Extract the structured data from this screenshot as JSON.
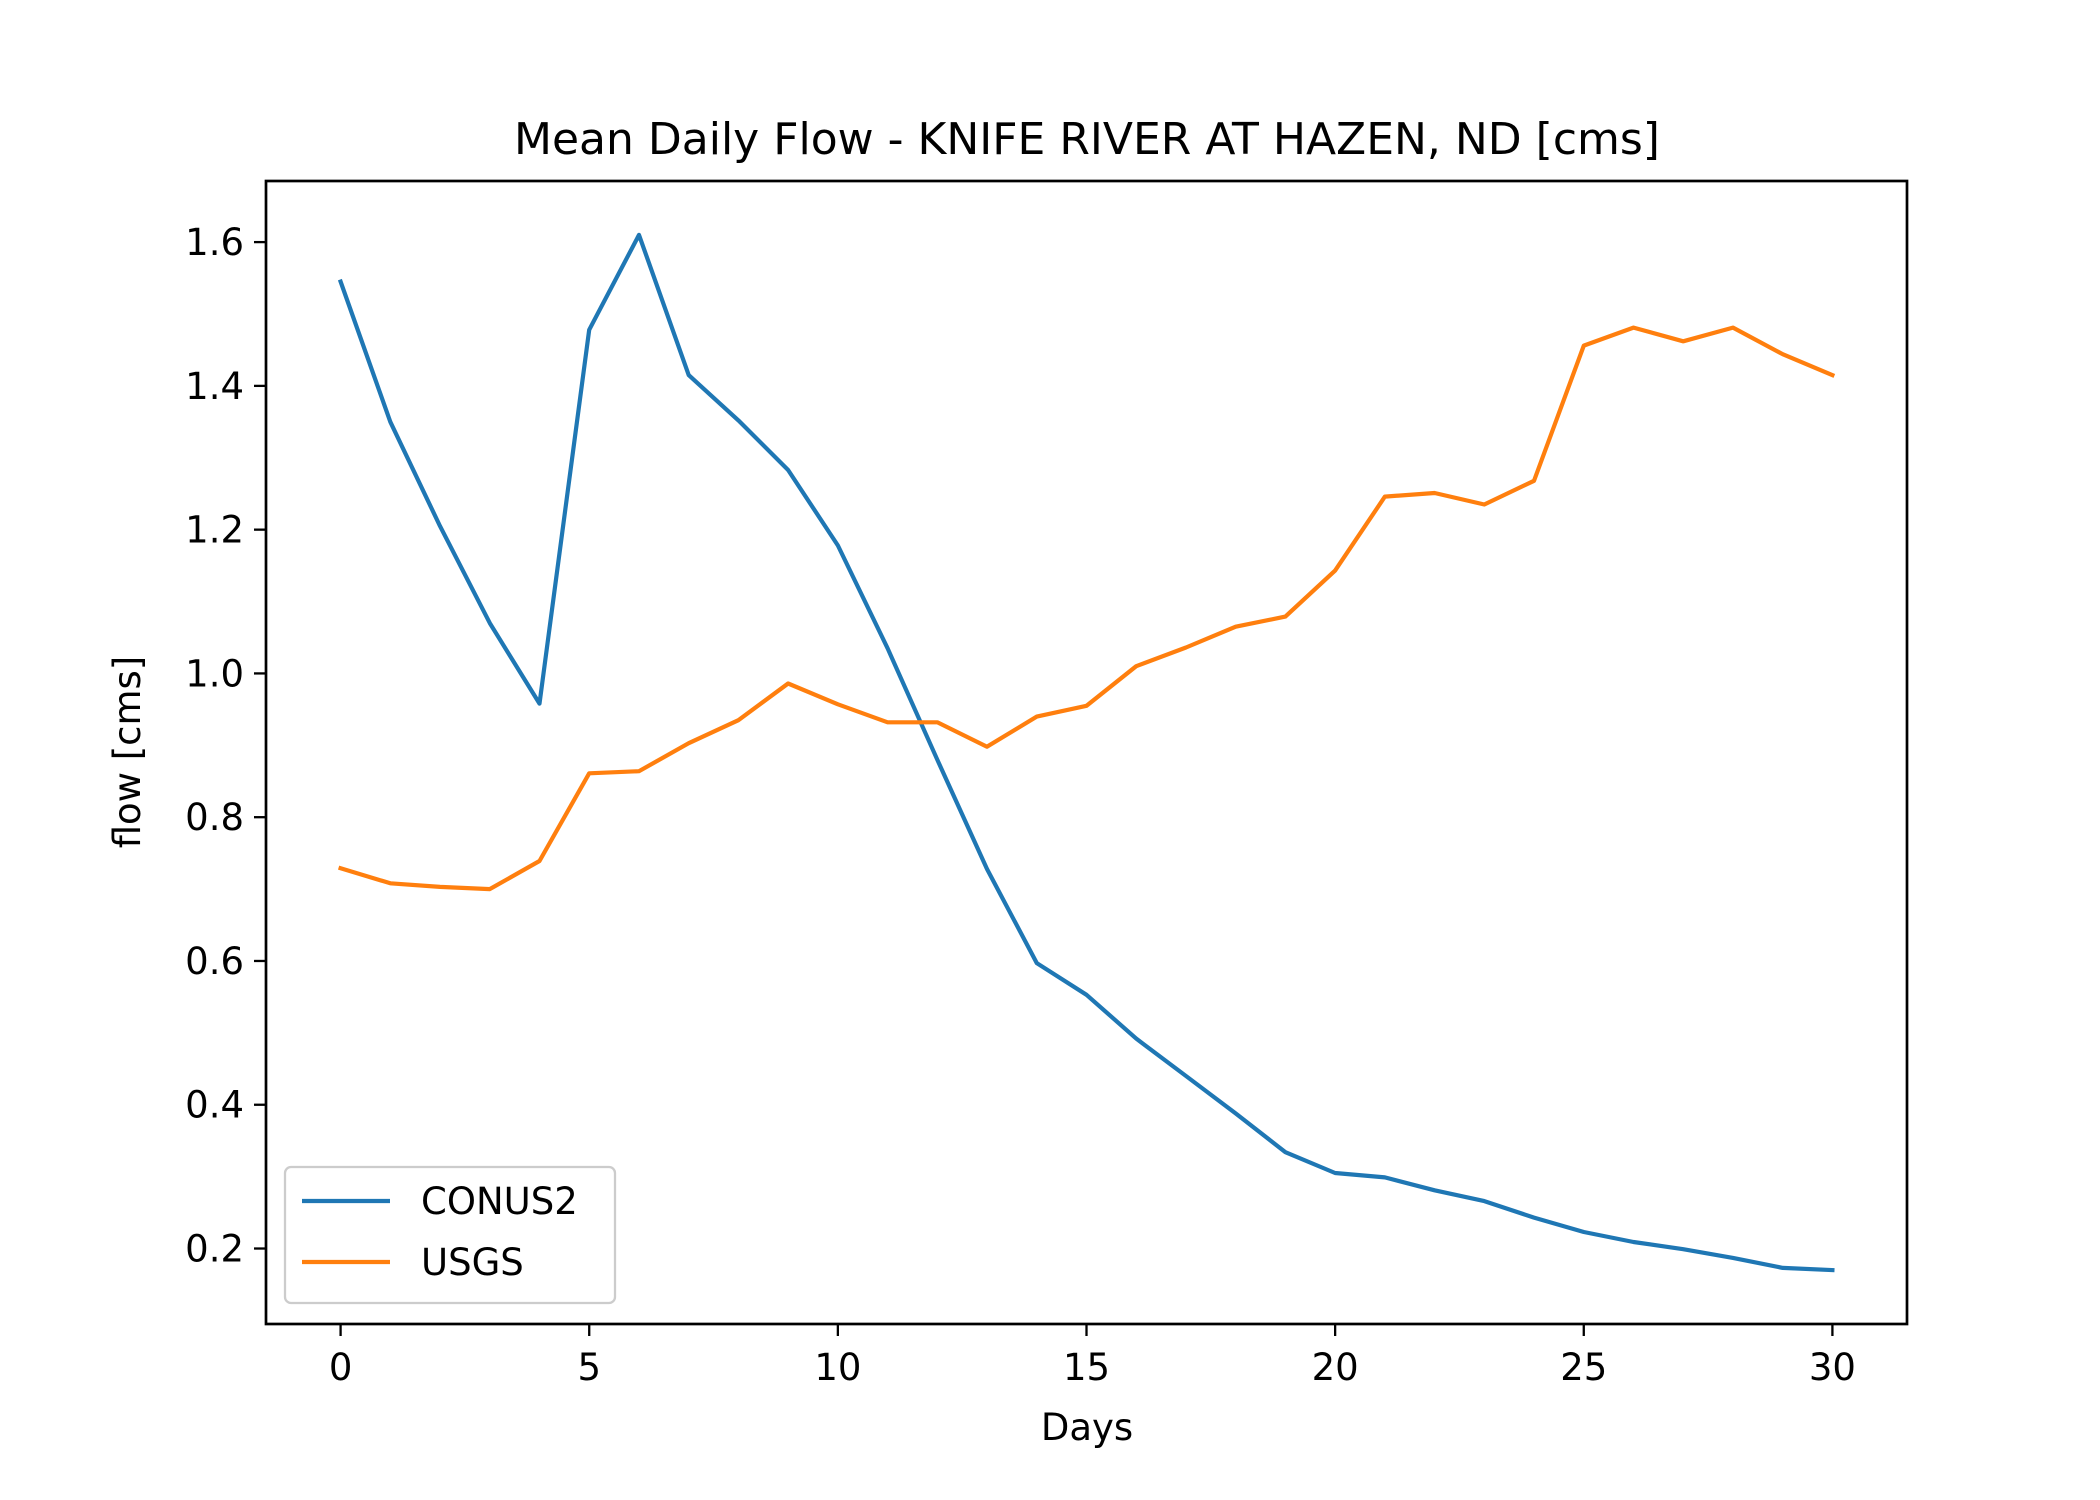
{
  "chart_data": {
    "type": "line",
    "title": "Mean Daily Flow - KNIFE RIVER AT HAZEN, ND [cms]",
    "xlabel": "Days",
    "ylabel": "flow [cms]",
    "xlim": [
      -1.5,
      31.5
    ],
    "ylim": [
      0.095,
      1.685
    ],
    "xticks": [
      0,
      5,
      10,
      15,
      20,
      25,
      30
    ],
    "yticks": [
      0.2,
      0.4,
      0.6,
      0.8,
      1.0,
      1.2,
      1.4,
      1.6
    ],
    "xtick_labels": [
      "0",
      "5",
      "10",
      "15",
      "20",
      "25",
      "30"
    ],
    "ytick_labels": [
      "0.2",
      "0.4",
      "0.6",
      "0.8",
      "1.0",
      "1.2",
      "1.4",
      "1.6"
    ],
    "grid": false,
    "legend_position": "lower-left",
    "x": [
      0,
      1,
      2,
      3,
      4,
      5,
      6,
      7,
      8,
      9,
      10,
      11,
      12,
      13,
      14,
      15,
      16,
      17,
      18,
      19,
      20,
      21,
      22,
      23,
      24,
      25,
      26,
      27,
      28,
      29,
      30
    ],
    "series": [
      {
        "name": "CONUS2",
        "color": "#1f77b4",
        "values": [
          1.545,
          1.35,
          1.205,
          1.07,
          0.958,
          1.478,
          1.61,
          1.415,
          1.352,
          1.283,
          1.178,
          1.035,
          0.88,
          0.728,
          0.597,
          0.553,
          0.492,
          0.44,
          0.388,
          0.334,
          0.305,
          0.299,
          0.281,
          0.266,
          0.243,
          0.223,
          0.209,
          0.199,
          0.187,
          0.173,
          0.17
        ]
      },
      {
        "name": "USGS",
        "color": "#ff7f0e",
        "values": [
          0.729,
          0.708,
          0.703,
          0.7,
          0.739,
          0.861,
          0.864,
          0.903,
          0.935,
          0.986,
          0.957,
          0.932,
          0.932,
          0.898,
          0.94,
          0.955,
          1.01,
          1.036,
          1.065,
          1.079,
          1.143,
          1.246,
          1.251,
          1.235,
          1.268,
          1.456,
          1.481,
          1.462,
          1.481,
          1.444,
          1.415
        ]
      }
    ]
  }
}
